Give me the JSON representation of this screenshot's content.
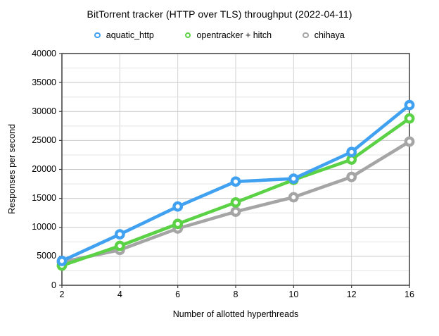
{
  "chart_data": {
    "type": "line",
    "title": "BitTorrent tracker (HTTP over TLS) throughput (2022-04-11)",
    "xlabel": "Number of allotted hyperthreads",
    "ylabel": "Responses per second",
    "categories": [
      "2",
      "4",
      "6",
      "8",
      "10",
      "12",
      "16"
    ],
    "x_scale": "categorical-evenly-spaced",
    "ylim": [
      0,
      40000
    ],
    "y_major_step": 5000,
    "y_minor_step": 2500,
    "grid": true,
    "legend_position": "top",
    "series": [
      {
        "name": "aquatic_http",
        "color": "#41a1f1",
        "values": [
          4200,
          8800,
          13600,
          17900,
          18400,
          23000,
          31100
        ]
      },
      {
        "name": "opentracker + hitch",
        "color": "#5bd245",
        "values": [
          3400,
          6800,
          10600,
          14300,
          18200,
          21700,
          28800
        ]
      },
      {
        "name": "chihaya",
        "color": "#a5a5a5",
        "values": [
          4000,
          6100,
          9800,
          12700,
          15200,
          18700,
          24800
        ]
      }
    ],
    "colors": {
      "plot_border": "#3d3d3d",
      "grid_major": "#c9c9c9",
      "grid_minor": "#e4e4e4",
      "grid_vertical": "#d2d2d2",
      "background": "#ffffff",
      "marker_fill": "#ffffff"
    }
  }
}
